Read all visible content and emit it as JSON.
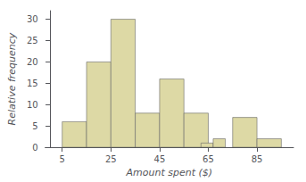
{
  "chart_data": {
    "type": "bar",
    "x": [
      5,
      15,
      25,
      35,
      45,
      55,
      62,
      67,
      75,
      85
    ],
    "widths": [
      10,
      10,
      10,
      10,
      10,
      10,
      5,
      5,
      10,
      10
    ],
    "values": [
      6,
      20,
      30,
      8,
      16,
      8,
      1,
      2,
      7,
      2
    ],
    "color": "#ddd9a5",
    "xlabel": "Amount spent ($)",
    "ylabel": "Relative frequency",
    "xlim": [
      -2,
      100
    ],
    "xticks": [
      5,
      25,
      45,
      65,
      85
    ],
    "ylim": [
      0,
      32
    ],
    "yticks": [
      0,
      5,
      10,
      15,
      20,
      25,
      30
    ],
    "grid": false
  }
}
